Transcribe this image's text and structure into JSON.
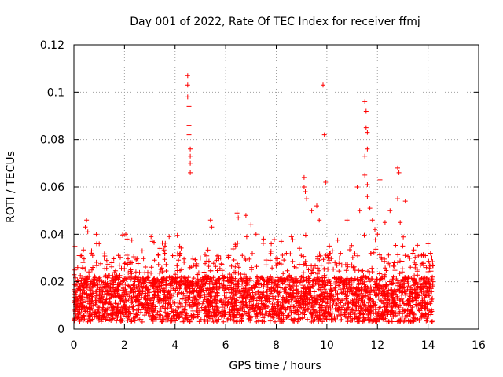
{
  "chart_data": {
    "type": "scatter",
    "title": "Day 001 of 2022, Rate Of TEC Index for receiver ffmj",
    "xlabel": "GPS time / hours",
    "ylabel": "ROTI / TECUs",
    "xlim": [
      0,
      16
    ],
    "ylim": [
      0,
      0.12
    ],
    "xticks": [
      0,
      2,
      4,
      6,
      8,
      10,
      12,
      14,
      16
    ],
    "xtick_labels": [
      "0",
      "2",
      "4",
      "6",
      "8",
      "10",
      "12",
      "14",
      "16"
    ],
    "yticks": [
      0,
      0.02,
      0.04,
      0.06,
      0.08,
      0.1,
      0.12
    ],
    "ytick_labels": [
      "0",
      "0.02",
      "0.04",
      "0.06",
      "0.08",
      "0.1",
      "0.12"
    ],
    "grid": true,
    "marker": "+",
    "color": "#ff0000",
    "data_range_hours": [
      0,
      14.2
    ],
    "series": [
      {
        "name": "ROTI",
        "points": [
          [
            0.05,
            0.03
          ],
          [
            0.15,
            0.026
          ],
          [
            0.3,
            0.031
          ],
          [
            0.45,
            0.043
          ],
          [
            0.5,
            0.046
          ],
          [
            0.55,
            0.041
          ],
          [
            0.7,
            0.033
          ],
          [
            0.9,
            0.036
          ],
          [
            1.0,
            0.036
          ],
          [
            1.2,
            0.03
          ],
          [
            1.5,
            0.028
          ],
          [
            1.8,
            0.027
          ],
          [
            2.05,
            0.04
          ],
          [
            2.1,
            0.038
          ],
          [
            2.3,
            0.028
          ],
          [
            2.7,
            0.033
          ],
          [
            3.05,
            0.039
          ],
          [
            3.1,
            0.037
          ],
          [
            3.4,
            0.034
          ],
          [
            3.6,
            0.035
          ],
          [
            3.9,
            0.031
          ],
          [
            4.2,
            0.032
          ],
          [
            4.5,
            0.107
          ],
          [
            4.5,
            0.103
          ],
          [
            4.5,
            0.098
          ],
          [
            4.55,
            0.094
          ],
          [
            4.55,
            0.086
          ],
          [
            4.55,
            0.082
          ],
          [
            4.6,
            0.076
          ],
          [
            4.6,
            0.073
          ],
          [
            4.6,
            0.07
          ],
          [
            4.6,
            0.066
          ],
          [
            4.7,
            0.03
          ],
          [
            5.0,
            0.03
          ],
          [
            5.4,
            0.046
          ],
          [
            5.45,
            0.043
          ],
          [
            5.8,
            0.03
          ],
          [
            6.45,
            0.049
          ],
          [
            6.5,
            0.047
          ],
          [
            6.8,
            0.048
          ],
          [
            7.0,
            0.044
          ],
          [
            7.2,
            0.04
          ],
          [
            7.5,
            0.038
          ],
          [
            7.8,
            0.036
          ],
          [
            8.2,
            0.037
          ],
          [
            8.6,
            0.039
          ],
          [
            9.1,
            0.064
          ],
          [
            9.1,
            0.06
          ],
          [
            9.15,
            0.058
          ],
          [
            9.2,
            0.055
          ],
          [
            9.4,
            0.05
          ],
          [
            9.6,
            0.052
          ],
          [
            9.7,
            0.046
          ],
          [
            9.85,
            0.103
          ],
          [
            9.9,
            0.082
          ],
          [
            9.95,
            0.062
          ],
          [
            10.1,
            0.035
          ],
          [
            10.5,
            0.03
          ],
          [
            10.8,
            0.046
          ],
          [
            11.2,
            0.06
          ],
          [
            11.3,
            0.05
          ],
          [
            11.5,
            0.096
          ],
          [
            11.55,
            0.092
          ],
          [
            11.55,
            0.085
          ],
          [
            11.6,
            0.083
          ],
          [
            11.6,
            0.076
          ],
          [
            11.5,
            0.073
          ],
          [
            11.5,
            0.065
          ],
          [
            11.6,
            0.061
          ],
          [
            11.6,
            0.056
          ],
          [
            11.7,
            0.051
          ],
          [
            11.8,
            0.046
          ],
          [
            11.9,
            0.042
          ],
          [
            12.0,
            0.04
          ],
          [
            12.1,
            0.063
          ],
          [
            12.3,
            0.045
          ],
          [
            12.5,
            0.05
          ],
          [
            12.8,
            0.068
          ],
          [
            12.85,
            0.066
          ],
          [
            12.8,
            0.055
          ],
          [
            12.9,
            0.045
          ],
          [
            13.0,
            0.035
          ],
          [
            13.1,
            0.054
          ],
          [
            13.4,
            0.032
          ],
          [
            13.7,
            0.027
          ],
          [
            14.0,
            0.036
          ],
          [
            14.1,
            0.032
          ],
          [
            14.15,
            0.03
          ]
        ]
      }
    ]
  }
}
